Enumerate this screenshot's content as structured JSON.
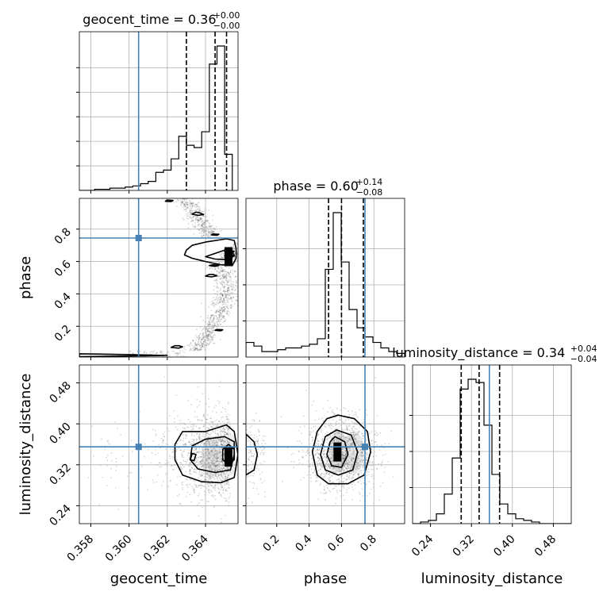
{
  "chart_data": {
    "type": "corner",
    "parameters": [
      {
        "name": "geocent_time",
        "label": "geocent_time",
        "range": [
          0.3574,
          0.3657
        ],
        "ticks": [
          0.358,
          0.36,
          0.362,
          0.364
        ],
        "tick_labels": [
          "0.358",
          "0.360",
          "0.362",
          "0.364"
        ],
        "truth": 0.3605,
        "quantiles": [
          0.363,
          0.3645,
          0.3651
        ],
        "title": {
          "prefix": "geocent_time = ",
          "median": "0.36",
          "plus": "+0.00",
          "minus": "−0.00"
        }
      },
      {
        "name": "phase",
        "label": "phase",
        "range": [
          0.01,
          0.99
        ],
        "ticks": [
          0.2,
          0.4,
          0.6,
          0.8
        ],
        "tick_labels": [
          "0.2",
          "0.4",
          "0.6",
          "0.8"
        ],
        "truth": 0.745,
        "quantiles": [
          0.52,
          0.6,
          0.735
        ],
        "title": {
          "prefix": "phase = ",
          "median": "0.60",
          "plus": "+0.14",
          "minus": "−0.08"
        }
      },
      {
        "name": "luminosity_distance",
        "label": "luminosity_distance",
        "range": [
          0.205,
          0.515
        ],
        "ticks": [
          0.24,
          0.32,
          0.4,
          0.48
        ],
        "tick_labels": [
          "0.24",
          "0.32",
          "0.40",
          "0.48"
        ],
        "truth": 0.355,
        "quantiles": [
          0.3,
          0.335,
          0.375
        ],
        "title": {
          "prefix": "luminosity_distance = ",
          "median": "0.34",
          "plus": "+0.04",
          "minus": "−0.04"
        }
      }
    ],
    "histograms": [
      {
        "parameter": "geocent_time",
        "edges_start": 0.3574,
        "bin_width": 0.0004,
        "counts": [
          0,
          0,
          1,
          1,
          2,
          2,
          3,
          4,
          6,
          8,
          16,
          18,
          28,
          48,
          40,
          38,
          52,
          112,
          128,
          32
        ]
      },
      {
        "parameter": "phase",
        "edges_start": 0.01,
        "bin_width": 0.049,
        "counts": [
          8,
          6,
          3,
          3,
          4,
          5,
          5,
          6,
          7,
          10,
          48,
          79,
          52,
          26,
          16,
          11,
          8,
          5,
          3,
          2
        ]
      },
      {
        "parameter": "luminosity_distance",
        "edges_start": 0.205,
        "bin_width": 0.0155,
        "counts": [
          0,
          1,
          2,
          6,
          18,
          40,
          82,
          88,
          86,
          60,
          30,
          12,
          6,
          3,
          2,
          1,
          0,
          0,
          0,
          0
        ]
      }
    ],
    "histogram_yticks": [
      [
        0.17,
        0.34,
        0.51,
        0.68,
        0.85
      ],
      [
        0.25,
        0.5,
        0.75
      ],
      [
        0.25,
        0.5,
        0.75
      ]
    ],
    "grid": true,
    "colors": {
      "truth": "#4682b4",
      "line": "#000000",
      "grid": "#b0b0b0",
      "contour_fill": "#888888"
    },
    "contours": {
      "phase_vs_geocent_time": [
        [
          [
            0.3651,
            0.74
          ],
          [
            0.364,
            0.72
          ],
          [
            0.3633,
            0.7
          ],
          [
            0.363,
            0.67
          ],
          [
            0.3629,
            0.64
          ],
          [
            0.3633,
            0.62
          ],
          [
            0.364,
            0.6
          ],
          [
            0.3648,
            0.58
          ],
          [
            0.3654,
            0.575
          ],
          [
            0.3656,
            0.62
          ],
          [
            0.3656,
            0.68
          ],
          [
            0.3655,
            0.73
          ]
        ],
        [
          [
            0.365,
            0.67
          ],
          [
            0.3645,
            0.65
          ],
          [
            0.364,
            0.63
          ],
          [
            0.3645,
            0.615
          ],
          [
            0.3652,
            0.61
          ],
          [
            0.3655,
            0.64
          ],
          [
            0.3654,
            0.66
          ]
        ],
        [
          [
            0.3652,
            0.65
          ],
          [
            0.365,
            0.635
          ],
          [
            0.3653,
            0.62
          ],
          [
            0.3655,
            0.635
          ]
        ],
        [
          [
            0.3635,
            0.905
          ],
          [
            0.3633,
            0.892
          ],
          [
            0.3636,
            0.885
          ],
          [
            0.3639,
            0.89
          ],
          [
            0.3637,
            0.9
          ]
        ],
        [
          [
            0.3642,
            0.52
          ],
          [
            0.364,
            0.51
          ],
          [
            0.3643,
            0.505
          ],
          [
            0.3646,
            0.512
          ],
          [
            0.3644,
            0.52
          ]
        ],
        [
          [
            0.362,
            0.98
          ],
          [
            0.3619,
            0.972
          ],
          [
            0.3622,
            0.97
          ],
          [
            0.3623,
            0.977
          ]
        ],
        [
          [
            0.3624,
            0.08
          ],
          [
            0.3622,
            0.07
          ],
          [
            0.3626,
            0.065
          ],
          [
            0.3628,
            0.073
          ],
          [
            0.3626,
            0.08
          ]
        ],
        [
          [
            0.3644,
            0.77
          ],
          [
            0.3643,
            0.764
          ],
          [
            0.3646,
            0.762
          ],
          [
            0.3647,
            0.768
          ]
        ],
        [
          [
            0.3646,
            0.18
          ],
          [
            0.3645,
            0.175
          ],
          [
            0.3648,
            0.172
          ],
          [
            0.3649,
            0.178
          ]
        ],
        [
          [
            0.3574,
            0.03
          ],
          [
            0.36,
            0.025
          ],
          [
            0.362,
            0.02
          ],
          [
            0.3574,
            0.012
          ]
        ],
        [
          [
            0.3644,
            0.58
          ],
          [
            0.3642,
            0.575
          ],
          [
            0.3645,
            0.57
          ],
          [
            0.3647,
            0.576
          ]
        ],
        [
          [
            0.3652,
            0.67
          ],
          [
            0.365,
            0.66
          ],
          [
            0.3653,
            0.655
          ],
          [
            0.3655,
            0.662
          ]
        ]
      ],
      "luminosity_distance_vs_geocent_time": [
        [
          [
            0.3651,
            0.398
          ],
          [
            0.364,
            0.385
          ],
          [
            0.3628,
            0.385
          ],
          [
            0.3624,
            0.36
          ],
          [
            0.3624,
            0.33
          ],
          [
            0.3628,
            0.3
          ],
          [
            0.3638,
            0.287
          ],
          [
            0.3648,
            0.285
          ],
          [
            0.3655,
            0.295
          ],
          [
            0.3657,
            0.34
          ],
          [
            0.3655,
            0.385
          ]
        ],
        [
          [
            0.365,
            0.375
          ],
          [
            0.364,
            0.37
          ],
          [
            0.3633,
            0.357
          ],
          [
            0.3632,
            0.33
          ],
          [
            0.3636,
            0.312
          ],
          [
            0.3645,
            0.305
          ],
          [
            0.3653,
            0.31
          ],
          [
            0.3655,
            0.34
          ],
          [
            0.3655,
            0.365
          ]
        ],
        [
          [
            0.3652,
            0.36
          ],
          [
            0.3649,
            0.35
          ],
          [
            0.3649,
            0.33
          ],
          [
            0.3652,
            0.32
          ],
          [
            0.3655,
            0.33
          ],
          [
            0.3655,
            0.35
          ]
        ],
        [
          [
            0.3633,
            0.342
          ],
          [
            0.3632,
            0.33
          ],
          [
            0.3634,
            0.328
          ],
          [
            0.3635,
            0.34
          ]
        ]
      ],
      "luminosity_distance_vs_phase": [
        [
          [
            0.58,
            0.417
          ],
          [
            0.68,
            0.41
          ],
          [
            0.76,
            0.385
          ],
          [
            0.78,
            0.345
          ],
          [
            0.74,
            0.3
          ],
          [
            0.64,
            0.283
          ],
          [
            0.52,
            0.283
          ],
          [
            0.45,
            0.3
          ],
          [
            0.42,
            0.345
          ],
          [
            0.45,
            0.385
          ],
          [
            0.51,
            0.41
          ]
        ],
        [
          [
            0.57,
            0.388
          ],
          [
            0.66,
            0.378
          ],
          [
            0.7,
            0.345
          ],
          [
            0.67,
            0.31
          ],
          [
            0.58,
            0.3
          ],
          [
            0.5,
            0.31
          ],
          [
            0.47,
            0.34
          ],
          [
            0.5,
            0.375
          ]
        ],
        [
          [
            0.56,
            0.375
          ],
          [
            0.62,
            0.365
          ],
          [
            0.64,
            0.34
          ],
          [
            0.6,
            0.315
          ],
          [
            0.54,
            0.318
          ],
          [
            0.51,
            0.34
          ],
          [
            0.53,
            0.365
          ]
        ],
        [
          [
            0.01,
            0.38
          ],
          [
            0.06,
            0.365
          ],
          [
            0.08,
            0.34
          ],
          [
            0.06,
            0.31
          ],
          [
            0.01,
            0.3
          ]
        ]
      ]
    },
    "peaks": {
      "phase_vs_geocent_time": [
        0.3652,
        0.63
      ],
      "luminosity_distance_vs_geocent_time": [
        0.3652,
        0.335
      ],
      "luminosity_distance_vs_phase": [
        0.575,
        0.345
      ]
    },
    "grey_clouds": {
      "luminosity_distance_vs_geocent_time": [
        [
          0.3653,
          0.34,
          0.06
        ],
        [
          0.3643,
          0.335,
          0.09
        ]
      ],
      "luminosity_distance_vs_phase": [
        [
          0.58,
          0.345,
          0.1
        ],
        [
          0.68,
          0.345,
          0.08
        ]
      ]
    }
  }
}
